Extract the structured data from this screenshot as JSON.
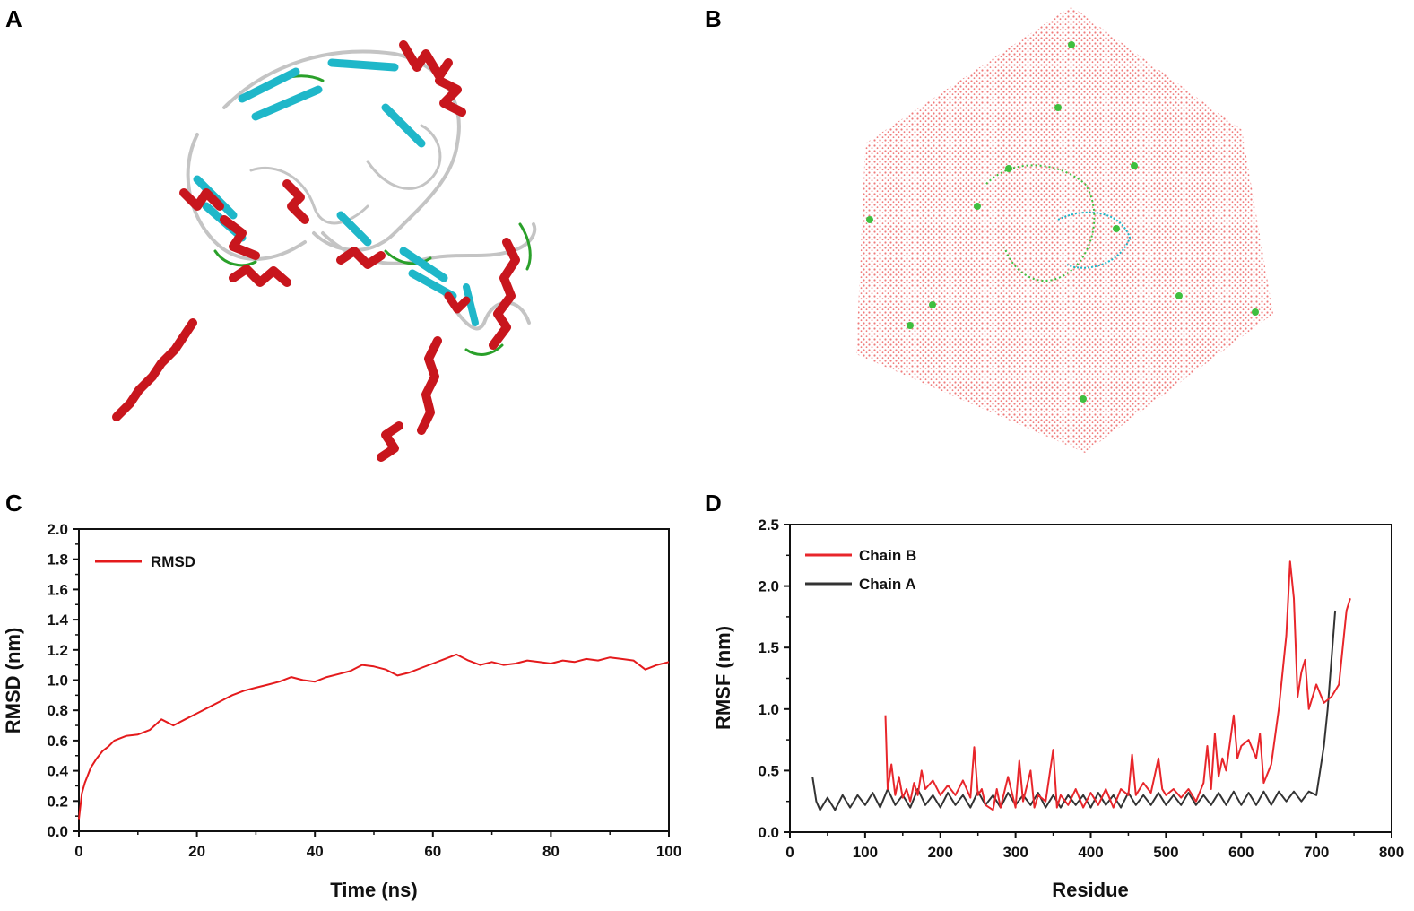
{
  "panels": {
    "a": {
      "label": "A"
    },
    "b": {
      "label": "B"
    },
    "c": {
      "label": "C"
    },
    "d": {
      "label": "D"
    }
  },
  "colors": {
    "helix": "#c8161d",
    "sheet": "#1fb7c9",
    "coil": "#c4c4c4",
    "turn": "#2aa02a",
    "water": "#f07b7b",
    "ion": "#3fbf3f",
    "rmsd_line": "#e41a1c",
    "chain_b_line": "#e8262b",
    "chain_a_line": "#333333"
  },
  "chart_data": [
    {
      "type": "line",
      "xlabel": "Time (ns)",
      "ylabel": "RMSD (nm)",
      "xlim": [
        0,
        100
      ],
      "ylim": [
        0.0,
        2.0
      ],
      "xticks": [
        0,
        20,
        40,
        60,
        80,
        100
      ],
      "xtick_labels": [
        "0",
        "20",
        "40",
        "60",
        "80",
        "100"
      ],
      "yticks": [
        0.0,
        0.2,
        0.4,
        0.6,
        0.8,
        1.0,
        1.2,
        1.4,
        1.6,
        1.8,
        2.0
      ],
      "ytick_labels": [
        "0.0",
        "0.2",
        "0.4",
        "0.6",
        "0.8",
        "1.0",
        "1.2",
        "1.4",
        "1.6",
        "1.8",
        "2.0"
      ],
      "legend_position": "top-left",
      "series": [
        {
          "name": "RMSD",
          "x": [
            0,
            0.5,
            1,
            2,
            3,
            4,
            5,
            6,
            8,
            10,
            12,
            14,
            15,
            16,
            18,
            20,
            22,
            24,
            26,
            28,
            30,
            32,
            34,
            36,
            38,
            40,
            42,
            44,
            46,
            48,
            50,
            52,
            54,
            56,
            58,
            60,
            62,
            64,
            66,
            68,
            70,
            72,
            74,
            76,
            78,
            80,
            82,
            84,
            86,
            88,
            90,
            92,
            94,
            96,
            98,
            100
          ],
          "y": [
            0.08,
            0.25,
            0.32,
            0.42,
            0.48,
            0.53,
            0.56,
            0.6,
            0.63,
            0.64,
            0.67,
            0.74,
            0.72,
            0.7,
            0.74,
            0.78,
            0.82,
            0.86,
            0.9,
            0.93,
            0.95,
            0.97,
            0.99,
            1.02,
            1.0,
            0.99,
            1.02,
            1.04,
            1.06,
            1.1,
            1.09,
            1.07,
            1.03,
            1.05,
            1.08,
            1.11,
            1.14,
            1.17,
            1.13,
            1.1,
            1.12,
            1.1,
            1.11,
            1.13,
            1.12,
            1.11,
            1.13,
            1.12,
            1.14,
            1.13,
            1.15,
            1.14,
            1.13,
            1.07,
            1.1,
            1.12
          ]
        }
      ]
    },
    {
      "type": "line",
      "xlabel": "Residue",
      "ylabel": "RMSF (nm)",
      "xlim": [
        0,
        800
      ],
      "ylim": [
        0.0,
        2.5
      ],
      "xticks": [
        0,
        100,
        200,
        300,
        400,
        500,
        600,
        700,
        800
      ],
      "xtick_labels": [
        "0",
        "100",
        "200",
        "300",
        "400",
        "500",
        "600",
        "700",
        "800"
      ],
      "yticks": [
        0.0,
        0.5,
        1.0,
        1.5,
        2.0,
        2.5
      ],
      "ytick_labels": [
        "0.0",
        "0.5",
        "1.0",
        "1.5",
        "2.0",
        "2.5"
      ],
      "legend_position": "top-left",
      "series": [
        {
          "name": "Chain B",
          "x": [
            127,
            130,
            135,
            140,
            145,
            150,
            155,
            160,
            165,
            170,
            175,
            180,
            190,
            200,
            210,
            220,
            230,
            240,
            245,
            250,
            255,
            260,
            270,
            275,
            280,
            290,
            300,
            305,
            310,
            320,
            325,
            330,
            340,
            350,
            355,
            360,
            370,
            380,
            390,
            400,
            410,
            420,
            430,
            440,
            450,
            455,
            460,
            470,
            480,
            490,
            495,
            500,
            510,
            520,
            530,
            540,
            550,
            555,
            560,
            565,
            570,
            575,
            580,
            590,
            595,
            600,
            610,
            620,
            625,
            630,
            640,
            650,
            660,
            665,
            670,
            675,
            680,
            685,
            690,
            700,
            710,
            720,
            730,
            740,
            745
          ],
          "y": [
            0.95,
            0.35,
            0.55,
            0.3,
            0.45,
            0.28,
            0.35,
            0.25,
            0.4,
            0.3,
            0.5,
            0.35,
            0.42,
            0.3,
            0.38,
            0.3,
            0.42,
            0.28,
            0.69,
            0.3,
            0.35,
            0.22,
            0.18,
            0.35,
            0.2,
            0.45,
            0.2,
            0.58,
            0.25,
            0.5,
            0.2,
            0.3,
            0.25,
            0.67,
            0.2,
            0.3,
            0.22,
            0.35,
            0.2,
            0.32,
            0.22,
            0.35,
            0.2,
            0.35,
            0.3,
            0.63,
            0.3,
            0.4,
            0.32,
            0.6,
            0.35,
            0.3,
            0.35,
            0.28,
            0.35,
            0.25,
            0.4,
            0.7,
            0.35,
            0.8,
            0.45,
            0.6,
            0.5,
            0.95,
            0.6,
            0.7,
            0.75,
            0.6,
            0.8,
            0.4,
            0.55,
            1.0,
            1.6,
            2.2,
            1.9,
            1.1,
            1.3,
            1.4,
            1.0,
            1.2,
            1.05,
            1.1,
            1.2,
            1.8,
            1.9
          ]
        },
        {
          "name": "Chain A",
          "x": [
            30,
            35,
            40,
            50,
            60,
            70,
            80,
            90,
            100,
            110,
            120,
            130,
            140,
            150,
            160,
            170,
            180,
            190,
            200,
            210,
            220,
            230,
            240,
            250,
            260,
            270,
            280,
            290,
            300,
            310,
            320,
            330,
            340,
            350,
            360,
            370,
            380,
            390,
            400,
            410,
            420,
            430,
            440,
            450,
            460,
            470,
            480,
            490,
            500,
            510,
            520,
            530,
            540,
            550,
            560,
            570,
            580,
            590,
            600,
            610,
            620,
            630,
            640,
            650,
            660,
            670,
            680,
            690,
            700,
            705,
            710,
            715,
            720,
            725
          ],
          "y": [
            0.45,
            0.25,
            0.18,
            0.28,
            0.18,
            0.3,
            0.2,
            0.3,
            0.22,
            0.32,
            0.2,
            0.35,
            0.22,
            0.3,
            0.2,
            0.35,
            0.22,
            0.3,
            0.2,
            0.32,
            0.22,
            0.3,
            0.2,
            0.33,
            0.22,
            0.3,
            0.2,
            0.32,
            0.22,
            0.3,
            0.22,
            0.32,
            0.2,
            0.3,
            0.2,
            0.3,
            0.22,
            0.3,
            0.2,
            0.32,
            0.22,
            0.3,
            0.2,
            0.32,
            0.22,
            0.3,
            0.22,
            0.32,
            0.22,
            0.3,
            0.22,
            0.32,
            0.22,
            0.3,
            0.22,
            0.32,
            0.22,
            0.33,
            0.22,
            0.32,
            0.22,
            0.33,
            0.22,
            0.33,
            0.25,
            0.33,
            0.25,
            0.33,
            0.3,
            0.5,
            0.7,
            1.0,
            1.4,
            1.8
          ]
        }
      ]
    }
  ]
}
